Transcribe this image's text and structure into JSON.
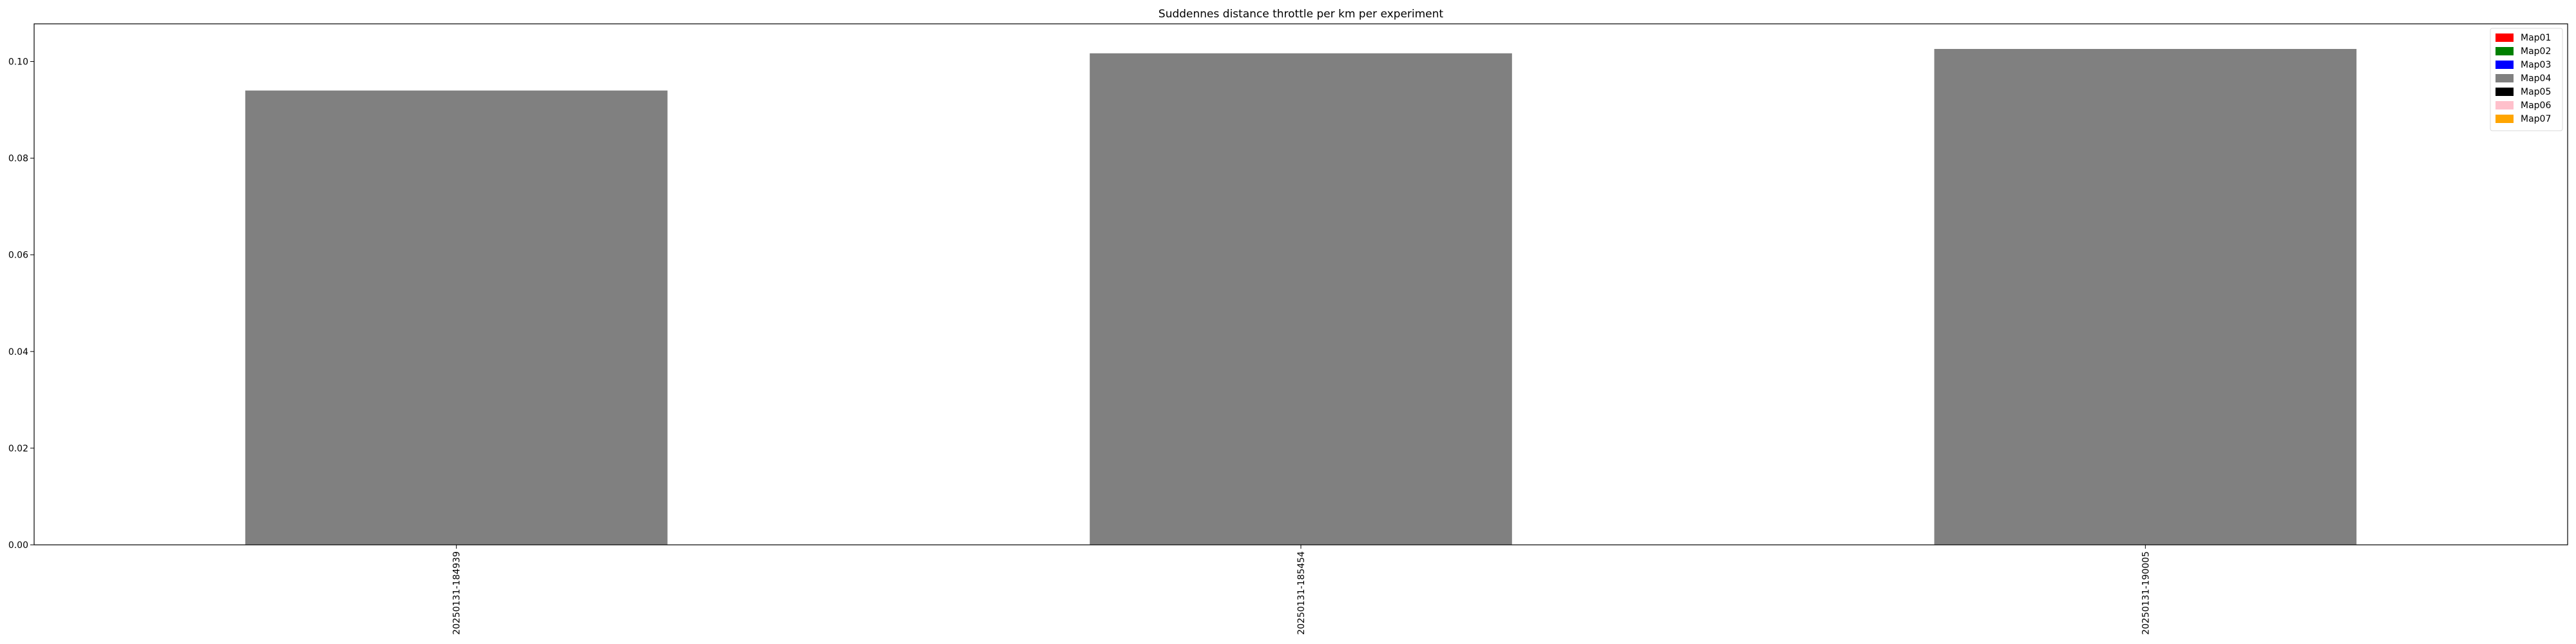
{
  "chart_data": {
    "type": "bar",
    "title": "Suddennes distance throttle per km per experiment",
    "xlabel": "",
    "ylabel": "",
    "categories": [
      "20250131-184939",
      "20250131-185454",
      "20250131-190005"
    ],
    "series": [
      {
        "name": "Map04",
        "values": [
          0.094,
          0.1017,
          0.1026
        ]
      }
    ],
    "bar_color": "#808080",
    "ylim": [
      0,
      0.1078
    ],
    "yticks": [
      "0.00",
      "0.02",
      "0.04",
      "0.06",
      "0.08",
      "0.10"
    ],
    "grid": false,
    "legend_position": "top-right",
    "legend": [
      {
        "label": "Map01",
        "color": "#ff0000"
      },
      {
        "label": "Map02",
        "color": "#008000"
      },
      {
        "label": "Map03",
        "color": "#0000ff"
      },
      {
        "label": "Map04",
        "color": "#808080"
      },
      {
        "label": "Map05",
        "color": "#000000"
      },
      {
        "label": "Map06",
        "color": "#ffc0cb"
      },
      {
        "label": "Map07",
        "color": "#ffa500"
      }
    ]
  }
}
